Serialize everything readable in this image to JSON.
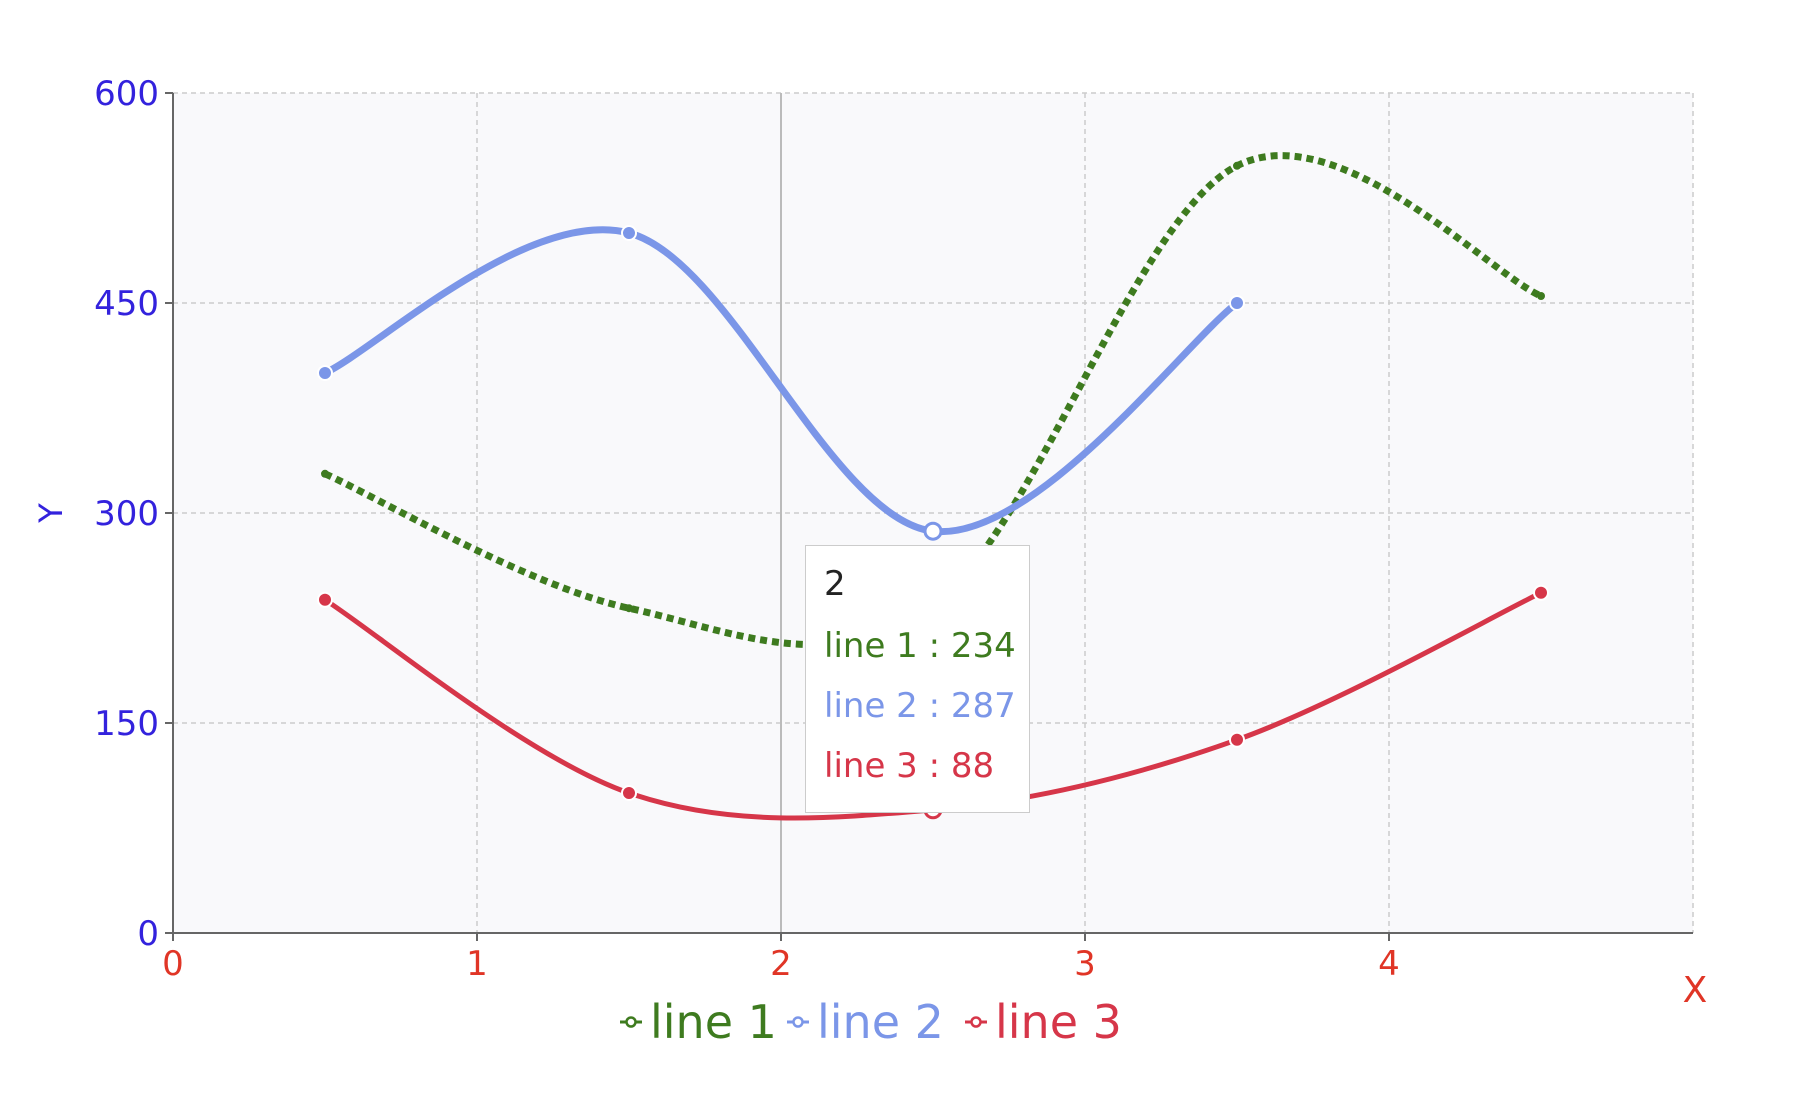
{
  "chart_data": {
    "type": "line",
    "x": [
      0.5,
      1.5,
      2.5,
      3.5,
      4.5
    ],
    "series": [
      {
        "name": "line 1",
        "values": [
          328,
          232,
          234,
          548,
          455
        ],
        "color": "#3e7b1f",
        "style": "dotted",
        "marker": "circle"
      },
      {
        "name": "line 2",
        "values": [
          400,
          500,
          287,
          450,
          null
        ],
        "color": "#7b96e8",
        "style": "solid",
        "marker": "circle"
      },
      {
        "name": "line 3",
        "values": [
          238,
          100,
          88,
          138,
          243
        ],
        "color": "#d63649",
        "style": "solid",
        "marker": "circle"
      }
    ],
    "xlabel": "X",
    "ylabel": "Y",
    "xlim": [
      0,
      5
    ],
    "ylim": [
      0,
      600
    ],
    "xticks": [
      "0",
      "1",
      "2",
      "3",
      "4"
    ],
    "yticks": [
      "0",
      "150",
      "300",
      "450",
      "600"
    ],
    "grid": true,
    "legend": "bottom",
    "colors": {
      "xaxis": "#e03526",
      "yaxis": "#3322dd",
      "plot_background": "#f9f9fb",
      "grid": "#cccccc"
    },
    "tooltip": {
      "title": "2",
      "rows": [
        {
          "label": "line 1 : 234",
          "color": "#3e7b1f"
        },
        {
          "label": "line 2 : 287",
          "color": "#7b96e8"
        },
        {
          "label": "line 3 : 88",
          "color": "#d63649"
        }
      ]
    }
  }
}
